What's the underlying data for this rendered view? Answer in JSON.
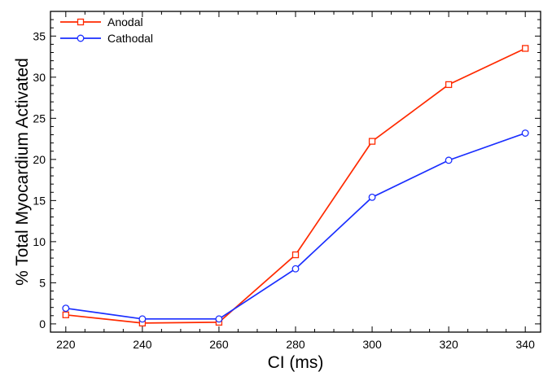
{
  "chart_data": {
    "type": "line",
    "title": "",
    "xlabel": "CI (ms)",
    "ylabel": "% Total Myocardium Activated",
    "x": [
      220,
      240,
      260,
      280,
      300,
      320,
      340
    ],
    "xlim": [
      216,
      344
    ],
    "ylim": [
      -1,
      38
    ],
    "xticks": [
      "220",
      "240",
      "260",
      "280",
      "300",
      "320",
      "340"
    ],
    "yticks": [
      "0",
      "5",
      "10",
      "15",
      "20",
      "25",
      "30",
      "35"
    ],
    "grid": false,
    "legend_position": "top-left",
    "series": [
      {
        "name": "Anodal",
        "color": "#ff2a00",
        "marker": "square",
        "values": [
          1.1,
          0.1,
          0.2,
          8.4,
          22.2,
          29.1,
          33.5
        ]
      },
      {
        "name": "Cathodal",
        "color": "#1a2eff",
        "marker": "circle",
        "values": [
          1.9,
          0.6,
          0.6,
          6.7,
          15.4,
          19.9,
          23.2
        ]
      }
    ]
  }
}
